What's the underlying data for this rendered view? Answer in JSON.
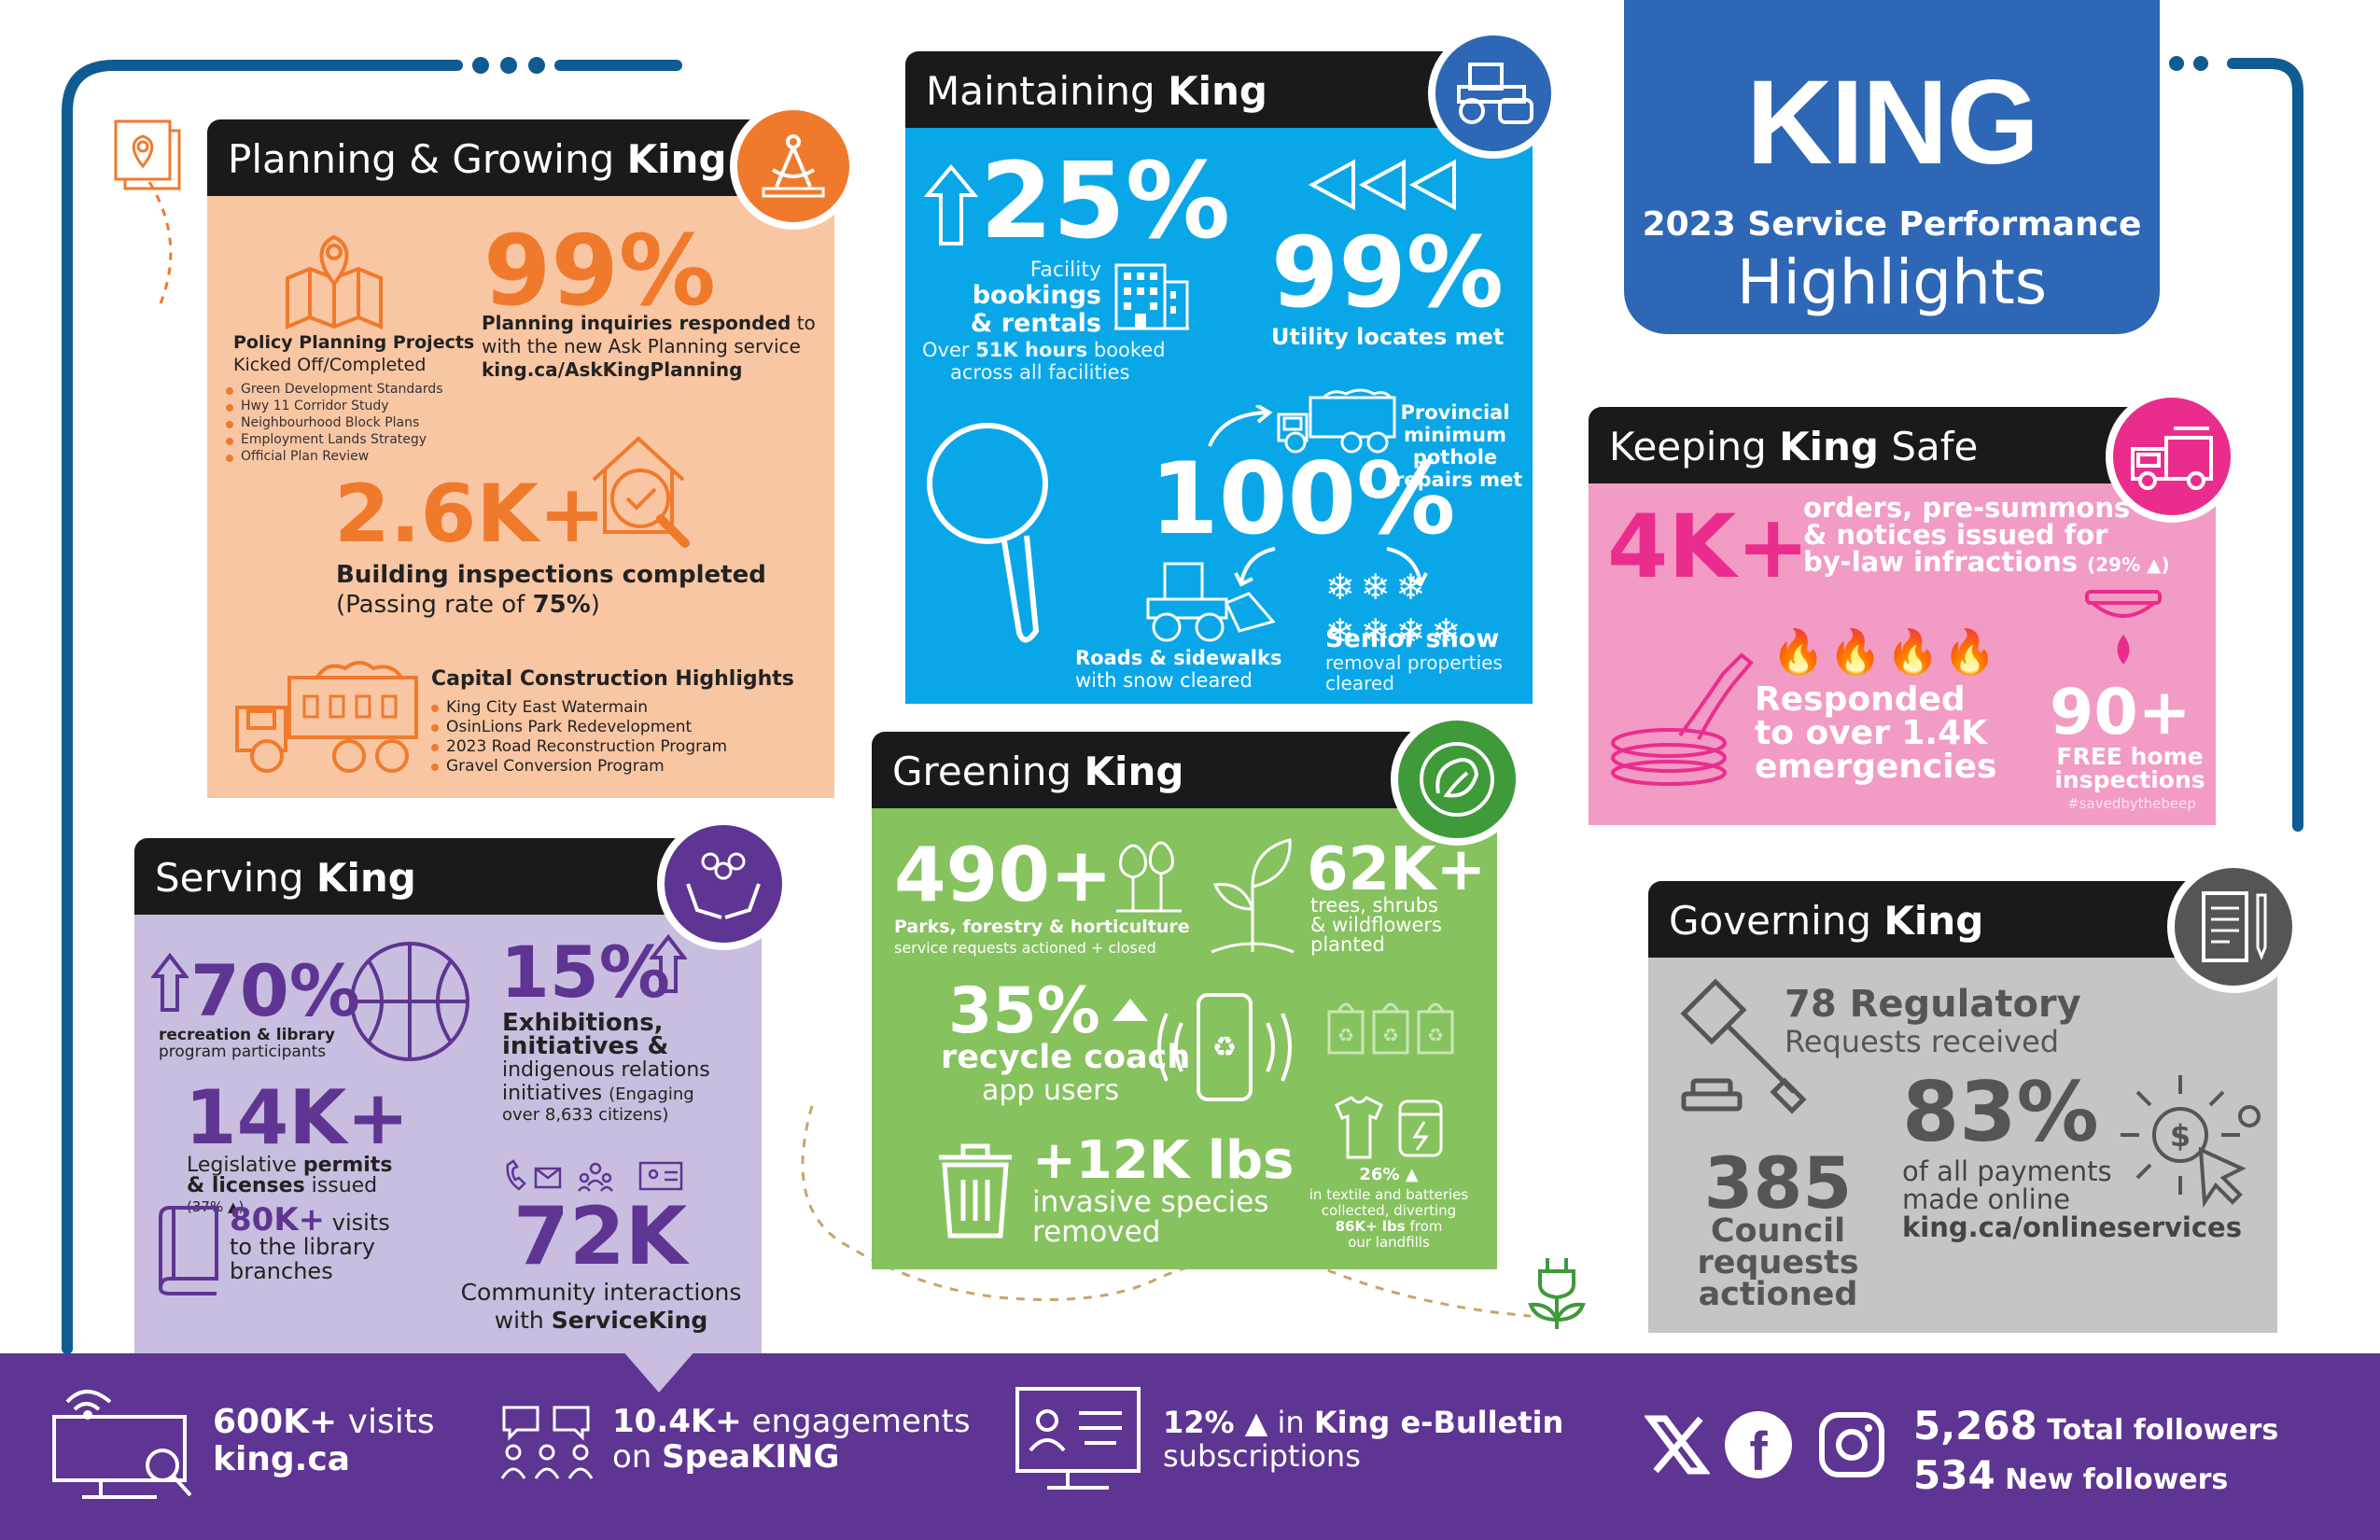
{
  "brand": {
    "logo": "KING",
    "subtitle": "2023 Service Performance",
    "title": "Highlights"
  },
  "colors": {
    "navy": "#0f5b92",
    "king_blue": "#2d67b5",
    "orange": "#f07a2c",
    "peach": "#f9c6a3",
    "sky": "#0aa7e8",
    "pink": "#f29bc4",
    "magenta": "#ea2d8d",
    "green": "#86c25e",
    "dgreen": "#3f9a3a",
    "lilac": "#c9bedf",
    "purple": "#5e3592",
    "grey": "#c5c5c5"
  },
  "planning": {
    "title_a": "Planning & Growing ",
    "title_b": "King",
    "icon": "compass-icon",
    "stat1": "99%",
    "stat1_text_b": "Planning inquiries responded",
    "stat1_text": " to with the new Ask Planning service",
    "stat1_link": "king.ca/AskKingPlanning",
    "policy_title": "Policy Planning Projects",
    "policy_sub": "Kicked Off/Completed",
    "policy_items": [
      "Green Development Standards",
      "Hwy 11 Corridor Study",
      "Neighbourhood Block Plans",
      "Employment Lands Strategy",
      "Official Plan Review"
    ],
    "stat2": "2.6K+",
    "stat2_text": "Building inspections completed",
    "stat2_sub_a": "(Passing rate of ",
    "stat2_sub_b": "75%",
    "stat2_sub_c": ")",
    "capital_title": "Capital Construction Highlights",
    "capital_items": [
      "King City East Watermain",
      "OsinLions Park Redevelopment",
      "2023 Road Reconstruction Program",
      "Gravel Conversion Program"
    ]
  },
  "maintaining": {
    "title_a": "Maintaining ",
    "title_b": "King",
    "icon": "steamroller-icon",
    "stat1": "25%",
    "stat1_l1": "Facility",
    "stat1_l2": "bookings",
    "stat1_l3": "& rentals",
    "stat1_l4a": "Over ",
    "stat1_l4b": "51K hours",
    "stat1_l4c": " booked",
    "stat1_l5": "across all facilities",
    "stat2": "99%",
    "stat2_text": "Utility locates met",
    "stat3": "100%",
    "stat3_l1": "Provincial",
    "stat3_l2": "minimum",
    "stat3_l3": "pothole",
    "stat3_l4": "repairs met",
    "roads_b": "Roads & sidewalks",
    "roads": "with snow cleared",
    "senior_b": "Senior snow",
    "senior_1": "removal properties",
    "senior_2": "cleared"
  },
  "safe": {
    "title_a": "Keeping ",
    "title_b": "King",
    "title_c": " Safe",
    "icon": "firetruck-icon",
    "stat1": "4K+",
    "stat1_l1": "orders, pre-summons",
    "stat1_l2": "& notices issued for",
    "stat1_l3": "by-law infractions",
    "stat1_pct": "(29% ▲)",
    "resp_1": "Responded",
    "resp_2": "to over 1.4K",
    "resp_3": "emergencies",
    "stat2": "90+",
    "stat2_l1": "FREE home",
    "stat2_l2": "inspections",
    "hashtag": "#savedbythebeep"
  },
  "greening": {
    "title_a": "Greening ",
    "title_b": "King",
    "icon": "leaf-globe-icon",
    "stat1": "490+",
    "stat1_l1": "Parks, forestry & horticulture",
    "stat1_l2": "service requests actioned + closed",
    "stat2": "62K+",
    "stat2_l1": "trees, shrubs",
    "stat2_l2": "& wildflowers",
    "stat2_l3": "planted",
    "stat3": "35%",
    "stat3_l1": "recycle coach",
    "stat3_l2": "app users",
    "stat4": "+12K lbs",
    "stat4_l1": "invasive species",
    "stat4_l2": "removed",
    "stat5": "26% ▲",
    "stat5_l1": "in textile and batteries",
    "stat5_l2": "collected, diverting",
    "stat5_l3": "86K+ lbs",
    "stat5_l3b": " from",
    "stat5_l4": "our landfills"
  },
  "serving": {
    "title_a": "Serving ",
    "title_b": "King",
    "icon": "hands-people-icon",
    "stat1": "70%",
    "stat1_l1": "recreation & library",
    "stat1_l2": "program participants",
    "stat2": "15%",
    "stat2_l1": "Exhibitions,",
    "stat2_l2": "initiatives &",
    "stat2_l3": "indigenous relations",
    "stat2_l4a": "initiatives ",
    "stat2_l4b": "(Engaging",
    "stat2_l5": "over 8,633 citizens)",
    "stat3": "14K+",
    "stat3_l1a": "Legislative ",
    "stat3_l1b": "permits",
    "stat3_l2a": "& licenses",
    "stat3_l2b": " issued",
    "stat3_l3": "(37% ▲)",
    "stat4": "80K+",
    "stat4_l1b": " visits",
    "stat4_l2": "to the library",
    "stat4_l3": "branches",
    "stat5": "72K",
    "stat5_l1": "Community interactions",
    "stat5_l2a": "with ",
    "stat5_l2b": "ServiceKing"
  },
  "governing": {
    "title_a": "Governing ",
    "title_b": "King",
    "icon": "document-pen-icon",
    "stat1": "78 Regulatory",
    "stat1_l1": "Requests received",
    "stat2": "83%",
    "stat2_l1": "of all payments",
    "stat2_l2": "made online",
    "stat2_link": "king.ca/onlineservices",
    "stat3": "385",
    "stat3_l1": "Council",
    "stat3_l2": "requests",
    "stat3_l3": "actioned"
  },
  "footer": {
    "visits_a": "600K+",
    "visits_b": " visits",
    "visits_c": "king.ca",
    "eng_a": "10.4K+",
    "eng_b": " engagements",
    "eng_c": "on ",
    "eng_d": "SpeaKING",
    "bull_a": "12% ▲",
    "bull_b": " in ",
    "bull_c": "King e-Bulletin",
    "bull_d": "subscriptions",
    "fol_a": "5,268",
    "fol_b": " Total followers",
    "fol_c": "534",
    "fol_d": " New followers"
  }
}
